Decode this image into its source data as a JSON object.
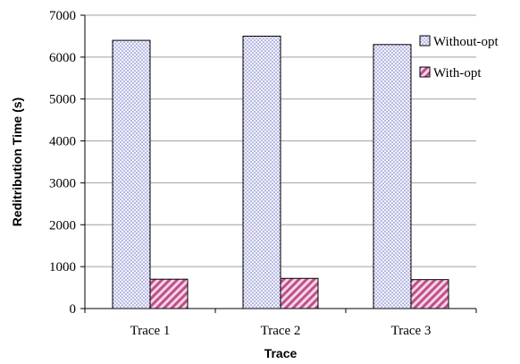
{
  "chart_data": {
    "type": "bar",
    "title": "",
    "xlabel": "Trace",
    "ylabel": "Reditribution Time (s)",
    "categories": [
      "Trace 1",
      "Trace 2",
      "Trace 3"
    ],
    "series": [
      {
        "name": "Without-opt",
        "values": [
          6400,
          6500,
          6300
        ],
        "color": "#c8ccf0",
        "pattern": "dots"
      },
      {
        "name": "With-opt",
        "values": [
          700,
          720,
          690
        ],
        "color": "#c0508a",
        "pattern": "diagonal"
      }
    ],
    "ylim": [
      0,
      7000
    ],
    "yticks": [
      0,
      1000,
      2000,
      3000,
      4000,
      5000,
      6000,
      7000
    ],
    "grid": true,
    "legend_position": "right"
  }
}
